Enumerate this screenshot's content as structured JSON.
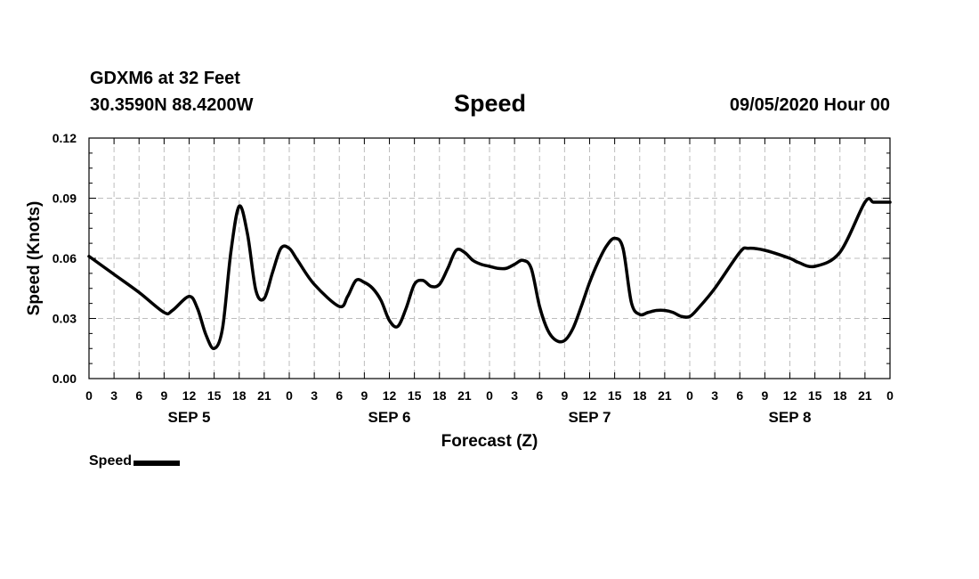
{
  "header": {
    "station": "GDXM6 at 32 Feet",
    "coords": "30.3590N 88.4200W",
    "title": "Speed",
    "datetime": "09/05/2020 Hour 00"
  },
  "legend": {
    "label": "Speed"
  },
  "chart_data": {
    "type": "line",
    "title": "Speed",
    "xlabel": "Forecast (Z)",
    "ylabel": "Speed (Knots)",
    "xlim": [
      0,
      96
    ],
    "ylim": [
      0.0,
      0.12
    ],
    "grid": true,
    "line_color": "#000000",
    "y_ticks": [
      "0.00",
      "0.03",
      "0.06",
      "0.09",
      "0.12"
    ],
    "x_tick_labels": [
      "0",
      "3",
      "6",
      "9",
      "12",
      "15",
      "18",
      "21",
      "0",
      "3",
      "6",
      "9",
      "12",
      "15",
      "18",
      "21",
      "0",
      "3",
      "6",
      "9",
      "12",
      "15",
      "18",
      "21",
      "0",
      "3",
      "6",
      "9",
      "12",
      "15",
      "18",
      "21",
      "0"
    ],
    "day_labels": [
      "SEP 5",
      "SEP 6",
      "SEP 7",
      "SEP 8"
    ],
    "series": [
      {
        "name": "Speed",
        "x": [
          0,
          3,
          6,
          9,
          10,
          12,
          13,
          14,
          15,
          16,
          17,
          18,
          19,
          20,
          21,
          22,
          23,
          24,
          25,
          27,
          30,
          31,
          32,
          33,
          34,
          35,
          36,
          37,
          38,
          39,
          40,
          41,
          42,
          43,
          44,
          45,
          46,
          47,
          48,
          49,
          50,
          51,
          52,
          53,
          54,
          55,
          56,
          57,
          58,
          59,
          60,
          61,
          62,
          63,
          64,
          65,
          66,
          67,
          68,
          69,
          70,
          71,
          72,
          73,
          75,
          78,
          79,
          81,
          84,
          85,
          87,
          90,
          93,
          94,
          95,
          96
        ],
        "values": [
          0.061,
          0.052,
          0.043,
          0.033,
          0.034,
          0.041,
          0.035,
          0.022,
          0.015,
          0.025,
          0.063,
          0.086,
          0.072,
          0.044,
          0.04,
          0.053,
          0.065,
          0.065,
          0.059,
          0.047,
          0.036,
          0.041,
          0.049,
          0.048,
          0.045,
          0.039,
          0.029,
          0.026,
          0.035,
          0.047,
          0.049,
          0.046,
          0.047,
          0.055,
          0.064,
          0.063,
          0.059,
          0.057,
          0.056,
          0.055,
          0.055,
          0.057,
          0.059,
          0.055,
          0.036,
          0.024,
          0.019,
          0.019,
          0.025,
          0.036,
          0.048,
          0.058,
          0.066,
          0.07,
          0.065,
          0.038,
          0.032,
          0.033,
          0.034,
          0.034,
          0.033,
          0.031,
          0.031,
          0.035,
          0.045,
          0.063,
          0.065,
          0.064,
          0.06,
          0.058,
          0.056,
          0.063,
          0.088,
          0.088,
          0.088,
          0.088
        ]
      }
    ]
  }
}
